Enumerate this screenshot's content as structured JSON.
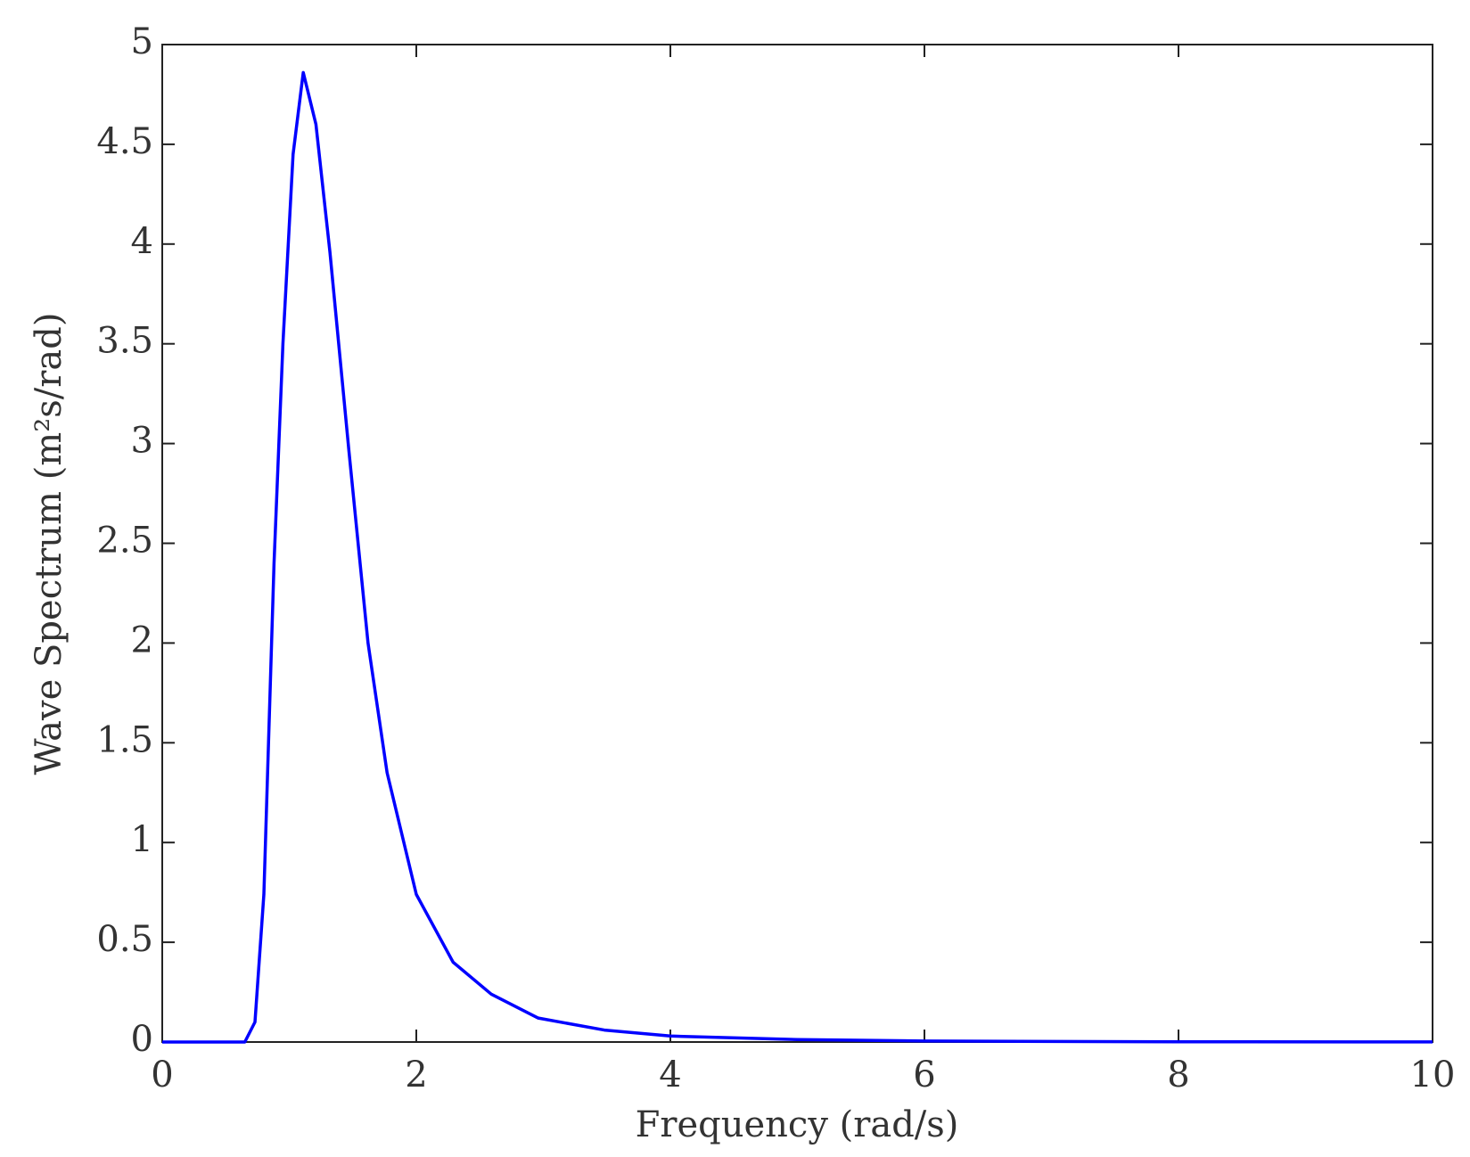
{
  "chart_data": {
    "type": "line",
    "xlabel": "Frequency (rad/s)",
    "ylabel": "Wave Spectrum (m²s/rad)",
    "x": [
      0,
      0.5,
      0.65,
      0.73,
      0.8,
      0.88,
      0.95,
      1.03,
      1.11,
      1.21,
      1.32,
      1.47,
      1.62,
      1.77,
      2.0,
      2.29,
      2.59,
      2.96,
      3.48,
      4.0,
      5.0,
      6.0,
      8.0,
      10.0
    ],
    "series": [
      {
        "color": "#0000ff",
        "values": [
          0,
          0,
          0,
          0.1,
          0.74,
          2.4,
          3.5,
          4.45,
          4.86,
          4.6,
          3.96,
          2.96,
          2.0,
          1.35,
          0.74,
          0.4,
          0.24,
          0.12,
          0.06,
          0.03,
          0.012,
          0.005,
          0.001,
          0.0005
        ]
      }
    ],
    "xlim": [
      0,
      10
    ],
    "xticks": [
      0,
      2,
      4,
      6,
      8,
      10
    ],
    "ylim": [
      0,
      5
    ],
    "yticks": [
      0,
      0.5,
      1,
      1.5,
      2,
      2.5,
      3,
      3.5,
      4,
      4.5,
      5
    ],
    "grid": false
  }
}
